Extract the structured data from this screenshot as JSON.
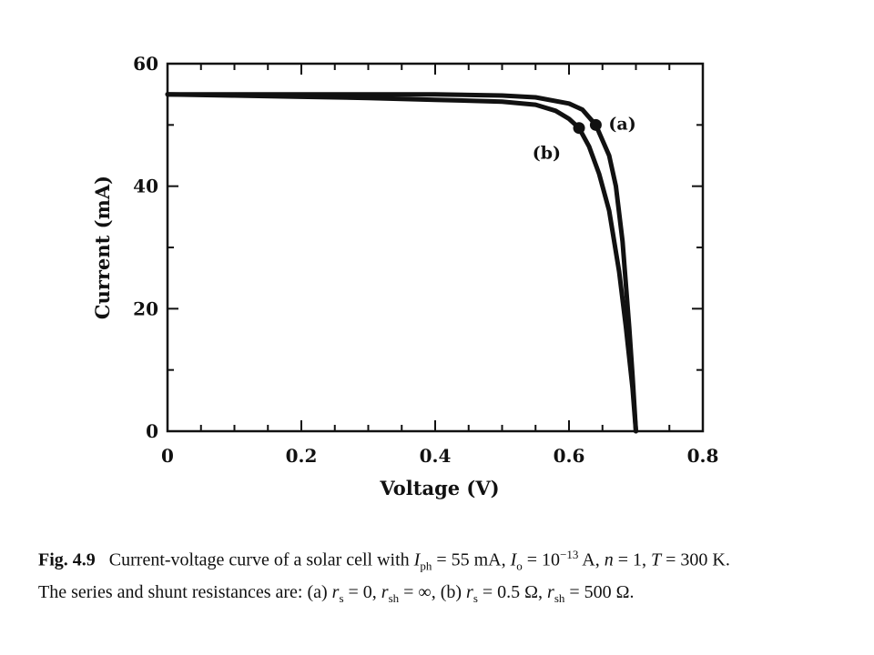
{
  "chart_data": {
    "type": "line",
    "xlabel": "Voltage (V)",
    "ylabel": "Current (mA)",
    "xlim": [
      0,
      0.8
    ],
    "ylim": [
      0,
      60
    ],
    "x_ticks": [
      0,
      0.2,
      0.4,
      0.6,
      0.8
    ],
    "x_tick_labels": [
      "0",
      "0.2",
      "0.4",
      "0.6",
      "0.8"
    ],
    "y_ticks": [
      0,
      20,
      40,
      60
    ],
    "y_tick_labels": [
      "0",
      "20",
      "40",
      "60"
    ],
    "grid": false,
    "legend": "none",
    "series": [
      {
        "name": "(a)",
        "color": "#111111",
        "x": [
          0,
          0.1,
          0.2,
          0.3,
          0.4,
          0.5,
          0.55,
          0.6,
          0.62,
          0.64,
          0.66,
          0.67,
          0.68,
          0.69,
          0.695,
          0.7
        ],
        "y": [
          55,
          55,
          55,
          55,
          55,
          54.8,
          54.5,
          53.5,
          52.5,
          50,
          45,
          40,
          31,
          17,
          9,
          0
        ],
        "marker": {
          "x": 0.64,
          "y": 50
        }
      },
      {
        "name": "(b)",
        "color": "#111111",
        "x": [
          0,
          0.1,
          0.2,
          0.3,
          0.4,
          0.5,
          0.55,
          0.58,
          0.6,
          0.615,
          0.63,
          0.645,
          0.66,
          0.675,
          0.685,
          0.695,
          0.7
        ],
        "y": [
          55,
          54.8,
          54.6,
          54.4,
          54.1,
          53.8,
          53.3,
          52.3,
          51,
          49.5,
          46.5,
          42,
          36,
          26,
          17,
          7,
          0
        ],
        "marker": {
          "x": 0.615,
          "y": 49.5
        }
      }
    ]
  },
  "caption": {
    "fig_number": "Fig. 4.9",
    "line1_prefix": "Current-voltage curve of a solar cell with ",
    "i_ph_symbol": "I",
    "i_ph_sub": "ph",
    "i_ph_value": " = 55 mA, ",
    "i_o_symbol": "I",
    "i_o_sub": "o",
    "i_o_value": " = 10",
    "i_o_exp": "−13",
    "i_o_rest": " A, ",
    "n_part": "n",
    "n_value": " = 1, ",
    "t_part": "T",
    "t_value": " = 300 K.",
    "line2_prefix": "The series and shunt resistances are: (a) ",
    "a_rs": "r",
    "a_rs_sub": "s",
    "a_rs_value": " = 0, ",
    "a_rsh": "r",
    "a_rsh_sub": "sh",
    "a_rsh_value": " = ∞, (b) ",
    "b_rs": "r",
    "b_rs_sub": "s",
    "b_rs_value": " = 0.5 Ω, ",
    "b_rsh": "r",
    "b_rsh_sub": "sh",
    "b_rsh_value": " = 500 Ω."
  }
}
